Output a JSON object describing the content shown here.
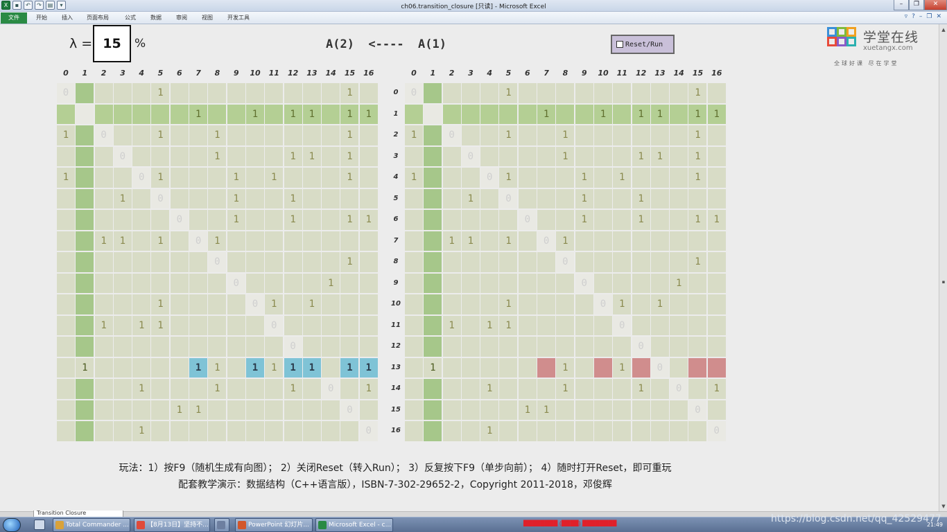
{
  "window": {
    "title": "ch06.transition_closure  [只读] - Microsoft Excel",
    "min": "–",
    "max": "❐",
    "close": "✕"
  },
  "qat": [
    {
      "name": "excel-logo-icon",
      "glyph": "X"
    },
    {
      "name": "save-icon",
      "glyph": "▪"
    },
    {
      "name": "undo-icon",
      "glyph": "↶"
    },
    {
      "name": "redo-icon",
      "glyph": "↷"
    },
    {
      "name": "macro-icon",
      "glyph": "▤"
    },
    {
      "name": "qat-dropdown-icon",
      "glyph": "▾"
    }
  ],
  "ribbon": {
    "file": "文件",
    "tabs": [
      "开始",
      "插入",
      "页面布局",
      "公式",
      "数据",
      "审阅",
      "视图",
      "开发工具"
    ]
  },
  "sheet": {
    "lambda_label": "λ =",
    "lambda_value": "15",
    "percent": "%",
    "formula": "A(2)  <----  A(1)",
    "reset_label": "Reset/Run",
    "instruction_line1": "玩法：1）按F9（随机生成有向图）；  2）关闭Reset（转入Run）；  3）反复按下F9（单步向前）；  4）随时打开Reset，即可重玩",
    "instruction_line2": "配套教学演示：数据结构（C++语言版），ISBN-7-302-29652-2，Copyright 2011-2018，邓俊辉",
    "sheet_tab": "Transition Closure"
  },
  "logo": {
    "cn": "学堂在线",
    "en": "xuetangx.com",
    "slogan": "全球好课 尽在学堂"
  },
  "matrix": {
    "headers": [
      "0",
      "1",
      "2",
      "3",
      "4",
      "5",
      "6",
      "7",
      "8",
      "9",
      "10",
      "11",
      "12",
      "13",
      "14",
      "15",
      "16"
    ],
    "highlight": 1,
    "cursor_row": 13,
    "left_rows": [
      [
        "0",
        "",
        "",
        "",
        "",
        "1",
        "",
        "",
        "",
        "",
        "",
        "",
        "",
        "",
        "",
        "1",
        ""
      ],
      [
        "",
        "",
        "",
        "",
        "",
        "",
        "",
        "1",
        "",
        "",
        "1",
        "",
        "1",
        "1",
        "",
        "1",
        "1"
      ],
      [
        "1",
        "",
        "0",
        "",
        "",
        "1",
        "",
        "",
        "1",
        "",
        "",
        "",
        "",
        "",
        "",
        "1",
        ""
      ],
      [
        "",
        "",
        "",
        "0",
        "",
        "",
        "",
        "",
        "1",
        "",
        "",
        "",
        "1",
        "1",
        "",
        "1",
        ""
      ],
      [
        "1",
        "",
        "",
        "",
        "0",
        "1",
        "",
        "",
        "",
        "1",
        "",
        "1",
        "",
        "",
        "",
        "1",
        ""
      ],
      [
        "",
        "",
        "",
        "1",
        "",
        "0",
        "",
        "",
        "",
        "1",
        "",
        "",
        "1",
        "",
        "",
        "",
        ""
      ],
      [
        "",
        "",
        "",
        "",
        "",
        "",
        "0",
        "",
        "",
        "1",
        "",
        "",
        "1",
        "",
        "",
        "1",
        "1"
      ],
      [
        "",
        "",
        "1",
        "1",
        "",
        "1",
        "",
        "0",
        "1",
        "",
        "",
        "",
        "",
        "",
        "",
        "",
        ""
      ],
      [
        "",
        "",
        "",
        "",
        "",
        "",
        "",
        "",
        "0",
        "",
        "",
        "",
        "",
        "",
        "",
        "1",
        ""
      ],
      [
        "",
        "",
        "",
        "",
        "",
        "",
        "",
        "",
        "",
        "0",
        "",
        "",
        "",
        "",
        "1",
        "",
        ""
      ],
      [
        "",
        "",
        "",
        "",
        "",
        "1",
        "",
        "",
        "",
        "",
        "0",
        "1",
        "",
        "1",
        "",
        "",
        ""
      ],
      [
        "",
        "",
        "1",
        "",
        "1",
        "1",
        "",
        "",
        "",
        "",
        "",
        "0",
        "",
        "",
        "",
        "",
        ""
      ],
      [
        "",
        "",
        "",
        "",
        "",
        "",
        "",
        "",
        "",
        "",
        "",
        "",
        "0",
        "",
        "",
        "",
        ""
      ],
      [
        "",
        "1",
        "",
        "",
        "",
        "",
        "",
        "1",
        "1",
        "",
        "1",
        "1",
        "1",
        "1",
        "",
        "1",
        "1"
      ],
      [
        "",
        "",
        "",
        "",
        "1",
        "",
        "",
        "",
        "1",
        "",
        "",
        "",
        "1",
        "",
        "0",
        "",
        "1"
      ],
      [
        "",
        "",
        "",
        "",
        "",
        "",
        "1",
        "1",
        "",
        "",
        "",
        "",
        "",
        "",
        "",
        "0",
        ""
      ],
      [
        "",
        "",
        "",
        "",
        "1",
        "",
        "",
        "",
        "",
        "",
        "",
        "",
        "",
        "",
        "",
        "",
        "0"
      ]
    ],
    "right_rows": [
      [
        "0",
        "",
        "",
        "",
        "",
        "1",
        "",
        "",
        "",
        "",
        "",
        "",
        "",
        "",
        "",
        "1",
        ""
      ],
      [
        "",
        "",
        "",
        "",
        "",
        "",
        "",
        "1",
        "",
        "",
        "1",
        "",
        "1",
        "1",
        "",
        "1",
        "1"
      ],
      [
        "1",
        "",
        "0",
        "",
        "",
        "1",
        "",
        "",
        "1",
        "",
        "",
        "",
        "",
        "",
        "",
        "1",
        ""
      ],
      [
        "",
        "",
        "",
        "0",
        "",
        "",
        "",
        "",
        "1",
        "",
        "",
        "",
        "1",
        "1",
        "",
        "1",
        ""
      ],
      [
        "1",
        "",
        "",
        "",
        "0",
        "1",
        "",
        "",
        "",
        "1",
        "",
        "1",
        "",
        "",
        "",
        "1",
        ""
      ],
      [
        "",
        "",
        "",
        "1",
        "",
        "0",
        "",
        "",
        "",
        "1",
        "",
        "",
        "1",
        "",
        "",
        "",
        ""
      ],
      [
        "",
        "",
        "",
        "",
        "",
        "",
        "0",
        "",
        "",
        "1",
        "",
        "",
        "1",
        "",
        "",
        "1",
        "1"
      ],
      [
        "",
        "",
        "1",
        "1",
        "",
        "1",
        "",
        "0",
        "1",
        "",
        "",
        "",
        "",
        "",
        "",
        "",
        ""
      ],
      [
        "",
        "",
        "",
        "",
        "",
        "",
        "",
        "",
        "0",
        "",
        "",
        "",
        "",
        "",
        "",
        "1",
        ""
      ],
      [
        "",
        "",
        "",
        "",
        "",
        "",
        "",
        "",
        "",
        "0",
        "",
        "",
        "",
        "",
        "1",
        "",
        ""
      ],
      [
        "",
        "",
        "",
        "",
        "",
        "1",
        "",
        "",
        "",
        "",
        "0",
        "1",
        "",
        "1",
        "",
        "",
        ""
      ],
      [
        "",
        "",
        "1",
        "",
        "1",
        "1",
        "",
        "",
        "",
        "",
        "",
        "0",
        "",
        "",
        "",
        "",
        ""
      ],
      [
        "",
        "",
        "",
        "",
        "",
        "",
        "",
        "",
        "",
        "",
        "",
        "",
        "0",
        "",
        "",
        "",
        ""
      ],
      [
        "",
        "1",
        "",
        "",
        "",
        "",
        "",
        "",
        "1",
        "",
        "",
        "1",
        "",
        "0",
        "",
        "",
        ""
      ],
      [
        "",
        "",
        "",
        "",
        "1",
        "",
        "",
        "",
        "1",
        "",
        "",
        "",
        "1",
        "",
        "0",
        "",
        "1"
      ],
      [
        "",
        "",
        "",
        "",
        "",
        "",
        "1",
        "1",
        "",
        "",
        "",
        "",
        "",
        "",
        "",
        "0",
        ""
      ],
      [
        "",
        "",
        "",
        "",
        "1",
        "",
        "",
        "",
        "",
        "",
        "",
        "",
        "",
        "",
        "",
        "",
        "0"
      ]
    ],
    "blue_cols": [
      7,
      10,
      12,
      13,
      15,
      16
    ],
    "pink_cols": [
      7,
      10,
      12,
      15,
      16
    ]
  },
  "taskbar": {
    "buttons": [
      {
        "label": "Total Commander ...",
        "color": "#d9a23a"
      },
      {
        "label": "【8月13日】坚持不...",
        "color": "#e04a3a"
      },
      {
        "label": "",
        "color": "#6d7fa0"
      },
      {
        "label": "PowerPoint 幻灯片...",
        "color": "#d2572b"
      },
      {
        "label": "Microsoft Excel - c...",
        "color": "#2a8a44"
      }
    ],
    "red_text": "████████ (████) ████████",
    "url": "https://blog.csdn.net/qq_42529477",
    "clock": "21:49"
  }
}
